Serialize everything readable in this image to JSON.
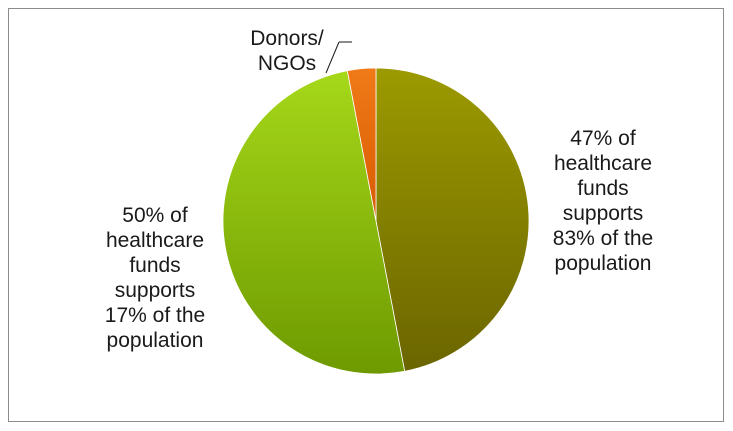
{
  "chart_data": {
    "type": "pie",
    "title": "",
    "slices": [
      {
        "key": "right",
        "value": 47,
        "label_lines": [
          "47% of",
          "healthcare",
          "funds",
          "supports",
          "83% of the",
          "population"
        ],
        "color": "#8a8a00"
      },
      {
        "key": "left",
        "value": 50,
        "label_lines": [
          "50% of",
          "healthcare",
          "funds",
          "supports",
          "17% of the",
          "population"
        ],
        "color": "#7aab00"
      },
      {
        "key": "donors",
        "value": 3,
        "label_lines": [
          "Donors/",
          "NGOs"
        ],
        "color": "#e86a10"
      }
    ],
    "legend": "none"
  }
}
